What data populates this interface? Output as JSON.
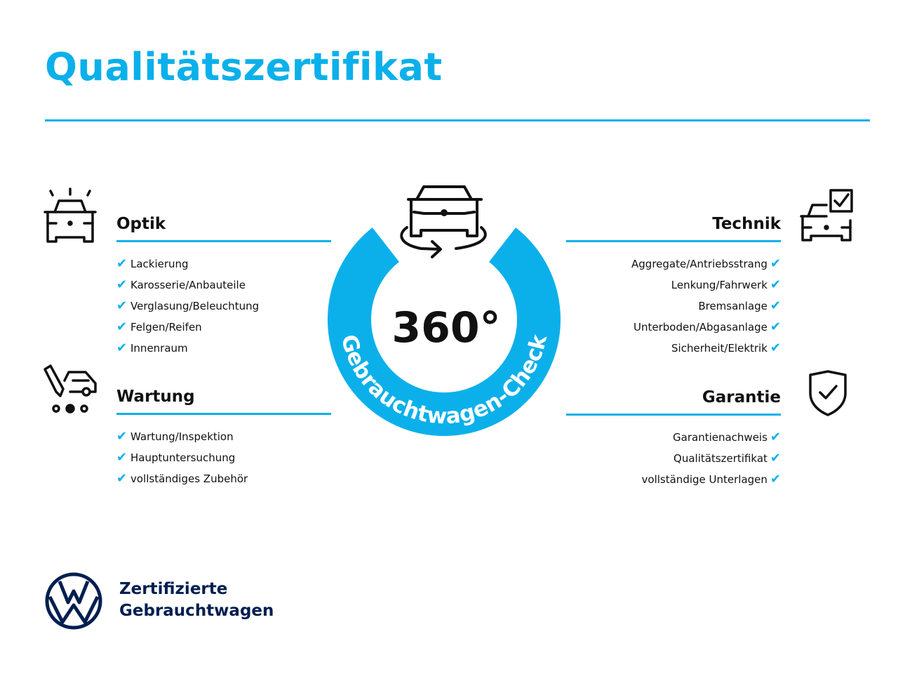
{
  "title": "Qualitätszertifikat",
  "badge": {
    "value": "360°",
    "ring_text": "Gebrauchtwagen-Check"
  },
  "sections": {
    "optik": {
      "heading": "Optik",
      "items": [
        "Lackierung",
        "Karosserie/Anbauteile",
        "Verglasung/Beleuchtung",
        "Felgen/Reifen",
        "Innenraum"
      ]
    },
    "wartung": {
      "heading": "Wartung",
      "items": [
        "Wartung/Inspektion",
        "Hauptuntersuchung",
        "vollständiges Zubehör"
      ]
    },
    "technik": {
      "heading": "Technik",
      "items": [
        "Aggregate/Antriebsstrang",
        "Lenkung/Fahrwerk",
        "Bremsanlage",
        "Unterboden/Abgasanlage",
        "Sicherheit/Elektrik"
      ]
    },
    "garantie": {
      "heading": "Garantie",
      "items": [
        "Garantienachweis",
        "Qualitätszertifikat",
        "vollständige Unterlagen"
      ]
    }
  },
  "check_glyph": "✔",
  "logo": {
    "line1": "Zertifizierte",
    "line2": "Gebrauchtwagen",
    "brand_mark": "VW"
  },
  "colors": {
    "accent": "#0bb0ea",
    "brand_navy": "#001e50",
    "text": "#111111"
  },
  "icons": {
    "optik": "car-lights-icon",
    "wartung": "car-service-icon",
    "technik": "car-checkbox-icon",
    "garantie": "shield-check-icon",
    "badge": "car-rotate-icon"
  }
}
